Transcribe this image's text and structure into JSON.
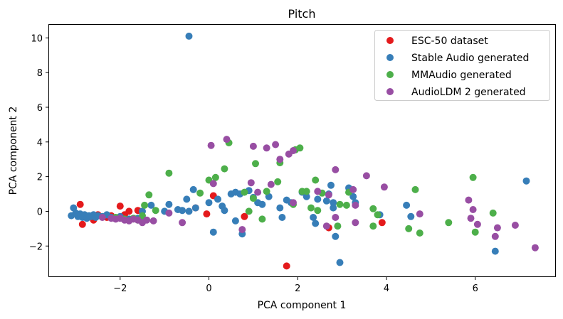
{
  "chart_data": {
    "type": "scatter",
    "title": "Pitch",
    "xlabel": "PCA component 1",
    "ylabel": "PCA component 2",
    "xlim": [
      -3.6,
      7.8
    ],
    "ylim": [
      -3.75,
      10.75
    ],
    "xticks": [
      -2,
      0,
      2,
      4,
      6
    ],
    "yticks": [
      -2,
      0,
      2,
      4,
      6,
      8,
      10
    ],
    "xtick_labels": [
      "−2",
      "0",
      "2",
      "4",
      "6"
    ],
    "ytick_labels": [
      "−2",
      "0",
      "2",
      "4",
      "6",
      "8",
      "10"
    ],
    "grid": false,
    "legend_position": "top-right",
    "series": [
      {
        "name": "ESC-50 dataset",
        "color": "#e41a1c",
        "points": [
          [
            -2.9,
            0.4
          ],
          [
            -2.85,
            -0.75
          ],
          [
            -2.6,
            -0.5
          ],
          [
            -2.5,
            -0.2
          ],
          [
            -2.3,
            -0.35
          ],
          [
            -2.2,
            -0.25
          ],
          [
            -2.0,
            0.3
          ],
          [
            -1.9,
            -0.2
          ],
          [
            -1.8,
            0.0
          ],
          [
            -1.6,
            0.05
          ],
          [
            -1.5,
            -0.45
          ],
          [
            -0.3,
            0.2
          ],
          [
            -0.05,
            -0.15
          ],
          [
            0.1,
            0.9
          ],
          [
            0.8,
            -0.3
          ],
          [
            1.75,
            -3.15
          ],
          [
            2.7,
            -0.95
          ],
          [
            3.9,
            -0.65
          ]
        ]
      },
      {
        "name": "Stable Audio generated",
        "color": "#377eb8",
        "points": [
          [
            -3.1,
            -0.25
          ],
          [
            -3.05,
            0.2
          ],
          [
            -3.0,
            -0.1
          ],
          [
            -2.95,
            -0.3
          ],
          [
            -2.9,
            -0.15
          ],
          [
            -2.85,
            -0.35
          ],
          [
            -2.8,
            -0.2
          ],
          [
            -2.75,
            -0.4
          ],
          [
            -2.7,
            -0.25
          ],
          [
            -2.65,
            -0.3
          ],
          [
            -2.6,
            -0.2
          ],
          [
            -2.55,
            -0.35
          ],
          [
            -2.5,
            -0.25
          ],
          [
            -2.4,
            -0.3
          ],
          [
            -2.3,
            -0.2
          ],
          [
            -2.2,
            -0.35
          ],
          [
            -2.0,
            -0.3
          ],
          [
            -1.8,
            -0.45
          ],
          [
            -1.6,
            -0.4
          ],
          [
            -1.5,
            -0.6
          ],
          [
            -1.5,
            0.0
          ],
          [
            -1.3,
            0.35
          ],
          [
            -1.0,
            0.0
          ],
          [
            -0.9,
            0.4
          ],
          [
            -0.7,
            0.1
          ],
          [
            -0.6,
            0.05
          ],
          [
            -0.45,
            0.0
          ],
          [
            -0.5,
            0.7
          ],
          [
            -0.35,
            1.25
          ],
          [
            -0.3,
            0.2
          ],
          [
            -0.45,
            10.1
          ],
          [
            0.0,
            0.5
          ],
          [
            0.1,
            -1.2
          ],
          [
            0.2,
            0.7
          ],
          [
            0.3,
            0.3
          ],
          [
            0.35,
            0.05
          ],
          [
            0.5,
            1.0
          ],
          [
            0.6,
            1.1
          ],
          [
            0.6,
            -0.55
          ],
          [
            0.7,
            1.0
          ],
          [
            0.75,
            -1.3
          ],
          [
            0.9,
            1.2
          ],
          [
            1.0,
            0.8
          ],
          [
            1.1,
            0.5
          ],
          [
            1.2,
            0.4
          ],
          [
            1.35,
            0.85
          ],
          [
            1.6,
            0.2
          ],
          [
            1.65,
            -0.35
          ],
          [
            1.75,
            0.65
          ],
          [
            1.85,
            0.5
          ],
          [
            2.1,
            1.1
          ],
          [
            2.2,
            0.85
          ],
          [
            2.35,
            -0.35
          ],
          [
            2.4,
            -0.7
          ],
          [
            2.45,
            0.7
          ],
          [
            2.65,
            0.6
          ],
          [
            2.7,
            1.0
          ],
          [
            2.75,
            1.5
          ],
          [
            2.8,
            0.2
          ],
          [
            2.8,
            0.5
          ],
          [
            2.85,
            -1.45
          ],
          [
            2.95,
            -2.95
          ],
          [
            3.15,
            1.35
          ],
          [
            3.25,
            0.85
          ],
          [
            3.3,
            0.5
          ],
          [
            3.85,
            -0.2
          ],
          [
            4.45,
            0.35
          ],
          [
            4.55,
            -0.3
          ],
          [
            6.45,
            -2.3
          ],
          [
            7.15,
            1.75
          ]
        ]
      },
      {
        "name": "MMAudio generated",
        "color": "#4daf4a",
        "points": [
          [
            -2.1,
            -0.35
          ],
          [
            -1.9,
            -0.45
          ],
          [
            -1.7,
            -0.4
          ],
          [
            -1.6,
            -0.5
          ],
          [
            -1.5,
            -0.25
          ],
          [
            -1.45,
            0.35
          ],
          [
            -1.35,
            0.95
          ],
          [
            -1.2,
            0.05
          ],
          [
            -0.9,
            2.2
          ],
          [
            -0.2,
            1.05
          ],
          [
            0.0,
            1.8
          ],
          [
            0.15,
            1.95
          ],
          [
            0.35,
            2.45
          ],
          [
            0.45,
            3.95
          ],
          [
            0.8,
            1.1
          ],
          [
            0.9,
            0.0
          ],
          [
            1.0,
            0.75
          ],
          [
            1.05,
            2.75
          ],
          [
            1.2,
            -0.45
          ],
          [
            1.3,
            1.15
          ],
          [
            1.55,
            1.7
          ],
          [
            1.6,
            2.8
          ],
          [
            1.9,
            0.4
          ],
          [
            1.95,
            3.55
          ],
          [
            2.05,
            3.65
          ],
          [
            2.1,
            1.15
          ],
          [
            2.2,
            1.15
          ],
          [
            2.3,
            0.2
          ],
          [
            2.4,
            1.8
          ],
          [
            2.45,
            0.05
          ],
          [
            2.55,
            1.05
          ],
          [
            2.95,
            0.4
          ],
          [
            2.9,
            -0.85
          ],
          [
            3.15,
            1.1
          ],
          [
            3.1,
            0.35
          ],
          [
            3.7,
            0.15
          ],
          [
            3.7,
            -0.85
          ],
          [
            3.8,
            -0.2
          ],
          [
            4.5,
            -1.0
          ],
          [
            4.65,
            1.25
          ],
          [
            4.75,
            -1.25
          ],
          [
            5.4,
            -0.65
          ],
          [
            5.95,
            1.95
          ],
          [
            6.0,
            -1.2
          ],
          [
            6.4,
            -0.1
          ]
        ]
      },
      {
        "name": "AudioLDM 2 generated",
        "color": "#984ea3",
        "points": [
          [
            -2.4,
            -0.35
          ],
          [
            -2.2,
            -0.4
          ],
          [
            -2.1,
            -0.45
          ],
          [
            -2.0,
            -0.4
          ],
          [
            -1.9,
            -0.5
          ],
          [
            -1.8,
            -0.55
          ],
          [
            -1.7,
            -0.45
          ],
          [
            -1.6,
            -0.5
          ],
          [
            -1.5,
            -0.65
          ],
          [
            -1.4,
            -0.5
          ],
          [
            -1.25,
            -0.55
          ],
          [
            -0.9,
            -0.1
          ],
          [
            -0.6,
            -0.65
          ],
          [
            0.05,
            3.8
          ],
          [
            0.1,
            1.6
          ],
          [
            0.4,
            4.15
          ],
          [
            0.75,
            -1.05
          ],
          [
            0.95,
            1.65
          ],
          [
            1.0,
            3.75
          ],
          [
            1.1,
            1.1
          ],
          [
            1.3,
            3.65
          ],
          [
            1.4,
            1.55
          ],
          [
            1.5,
            3.85
          ],
          [
            1.6,
            3.0
          ],
          [
            1.8,
            3.3
          ],
          [
            1.9,
            3.5
          ],
          [
            1.9,
            0.5
          ],
          [
            2.45,
            1.15
          ],
          [
            2.65,
            -0.85
          ],
          [
            2.7,
            0.95
          ],
          [
            2.85,
            -0.35
          ],
          [
            2.85,
            2.4
          ],
          [
            3.25,
            1.25
          ],
          [
            3.3,
            0.35
          ],
          [
            3.3,
            -0.65
          ],
          [
            3.55,
            2.05
          ],
          [
            3.95,
            1.4
          ],
          [
            4.75,
            -0.15
          ],
          [
            5.85,
            0.65
          ],
          [
            5.9,
            -0.4
          ],
          [
            5.95,
            0.1
          ],
          [
            6.05,
            -0.75
          ],
          [
            6.45,
            -1.45
          ],
          [
            6.5,
            -0.95
          ],
          [
            6.9,
            -0.8
          ],
          [
            7.35,
            -2.1
          ]
        ]
      }
    ]
  }
}
